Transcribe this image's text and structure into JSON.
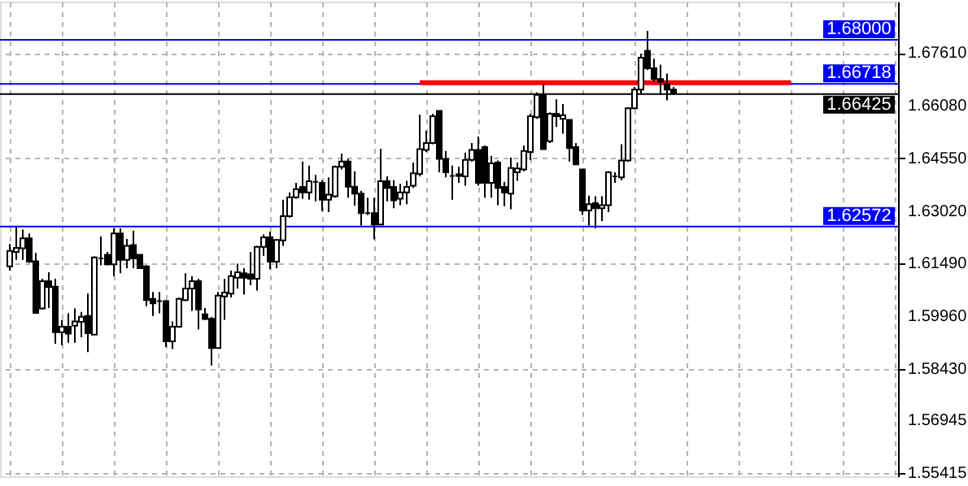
{
  "chart_data": {
    "type": "candlestick",
    "categories": [
      null,
      null,
      null,
      null,
      null,
      null,
      null,
      null,
      null,
      null,
      null,
      null,
      null,
      null,
      null,
      null,
      null,
      null,
      null,
      null,
      null,
      null,
      null,
      null,
      null,
      null,
      null,
      null,
      null,
      null,
      null,
      null,
      null,
      null,
      null,
      null,
      null,
      null,
      null,
      null,
      null,
      null,
      null,
      null,
      null,
      null,
      null,
      null,
      null,
      null,
      null,
      null,
      null,
      null,
      null,
      null,
      null,
      null,
      null,
      null,
      null,
      null,
      null,
      null,
      null,
      null,
      null,
      null,
      null,
      null,
      null,
      null,
      null,
      null,
      null,
      null,
      null,
      null,
      null,
      null,
      null,
      null,
      null,
      null,
      null,
      null,
      null,
      null,
      null,
      null,
      null,
      null,
      null,
      null,
      null,
      null,
      null,
      null,
      null,
      null,
      null,
      null,
      null,
      null,
      null,
      null,
      null,
      null,
      null,
      null,
      null,
      null,
      null,
      null,
      null,
      null,
      null,
      null,
      null,
      null,
      null,
      null,
      null,
      null,
      null,
      null,
      null,
      null,
      null,
      null,
      null,
      null,
      null,
      null,
      null,
      null,
      null,
      null
    ],
    "ohlc": [
      null,
      [
        1.6141,
        1.6206,
        1.6129,
        1.6186
      ],
      [
        1.6183,
        1.6257,
        1.616,
        1.6195
      ],
      [
        1.6194,
        1.6248,
        1.616,
        1.6223
      ],
      [
        1.6223,
        1.6237,
        1.6152,
        1.6155
      ],
      [
        1.6156,
        1.618,
        1.6006,
        1.6006
      ],
      [
        1.6019,
        1.6105,
        1.6016,
        1.6098
      ],
      [
        1.6098,
        1.6124,
        1.602,
        1.6081
      ],
      [
        1.6082,
        1.6105,
        1.5916,
        1.595
      ],
      [
        1.595,
        1.5985,
        1.5912,
        1.5966
      ],
      [
        1.5966,
        1.6005,
        1.5919,
        1.5946
      ],
      [
        1.5969,
        1.6019,
        1.5919,
        1.5981
      ],
      [
        1.598,
        1.6009,
        1.5935,
        1.5995
      ],
      [
        1.5997,
        1.6062,
        1.5892,
        1.5947
      ],
      [
        1.5943,
        1.617,
        1.5943,
        1.6167
      ],
      [
        1.6164,
        1.6228,
        1.6144,
        1.6164
      ],
      [
        1.6175,
        1.6183,
        1.6144,
        1.6147
      ],
      [
        1.6147,
        1.6252,
        1.6113,
        1.6237
      ],
      [
        1.6237,
        1.6252,
        1.6121,
        1.616
      ],
      [
        1.616,
        1.6221,
        1.6136,
        1.6201
      ],
      [
        1.6203,
        1.6245,
        1.6136,
        1.6164
      ],
      [
        1.6175,
        1.6175,
        1.6136,
        1.6136
      ],
      [
        1.6141,
        1.6144,
        1.6025,
        1.6043
      ],
      [
        1.6047,
        1.6067,
        1.5997,
        1.6034
      ],
      [
        1.604,
        1.6067,
        1.6005,
        1.604
      ],
      [
        1.604,
        1.6043,
        1.5907,
        1.5923
      ],
      [
        1.5923,
        1.5981,
        1.5901,
        1.5966
      ],
      [
        1.5966,
        1.6051,
        1.5963,
        1.6047
      ],
      [
        1.6043,
        1.6121,
        1.604,
        1.6077
      ],
      [
        1.6077,
        1.6113,
        1.6012,
        1.6098
      ],
      [
        1.6098,
        1.6105,
        1.5958,
        1.6016
      ],
      [
        1.6002,
        1.602,
        1.5985,
        1.5988
      ],
      [
        1.5989,
        1.5994,
        1.5853,
        1.5904
      ],
      [
        1.5904,
        1.6067,
        1.5904,
        1.6056
      ],
      [
        1.6054,
        1.6105,
        1.5986,
        1.6065
      ],
      [
        1.6062,
        1.6129,
        1.6051,
        1.6113
      ],
      [
        1.6108,
        1.6149,
        1.6077,
        1.6124
      ],
      [
        1.6121,
        1.6136,
        1.6059,
        1.6108
      ],
      [
        1.6118,
        1.6183,
        1.6087,
        1.6105
      ],
      [
        1.6105,
        1.6201,
        1.6071,
        1.6198
      ],
      [
        1.6198,
        1.6234,
        1.6172,
        1.6226
      ],
      [
        1.6226,
        1.6242,
        1.6133,
        1.6155
      ],
      [
        1.6155,
        1.6221,
        1.6136,
        1.6218
      ],
      [
        1.6217,
        1.6335,
        1.6201,
        1.6287
      ],
      [
        1.6287,
        1.6356,
        1.6283,
        1.6342
      ],
      [
        1.6342,
        1.6384,
        1.6338,
        1.6366
      ],
      [
        1.6372,
        1.6446,
        1.6338,
        1.6356
      ],
      [
        1.6356,
        1.6434,
        1.6335,
        1.6389
      ],
      [
        1.6387,
        1.6407,
        1.633,
        1.6387
      ],
      [
        1.6384,
        1.6392,
        1.6302,
        1.6335
      ],
      [
        1.6335,
        1.64,
        1.6299,
        1.635
      ],
      [
        1.6345,
        1.6434,
        1.6341,
        1.6431
      ],
      [
        1.6431,
        1.6469,
        1.6423,
        1.6446
      ],
      [
        1.6446,
        1.6454,
        1.6341,
        1.6373
      ],
      [
        1.6373,
        1.6418,
        1.6318,
        1.6353
      ],
      [
        1.6353,
        1.6361,
        1.626,
        1.6296
      ],
      [
        1.6296,
        1.6341,
        1.6291,
        1.6296
      ],
      [
        1.6296,
        1.6341,
        1.622,
        1.6263
      ],
      [
        1.6263,
        1.6483,
        1.6263,
        1.6389
      ],
      [
        1.6389,
        1.6403,
        1.633,
        1.6369
      ],
      [
        1.6372,
        1.6392,
        1.631,
        1.6333
      ],
      [
        1.6338,
        1.6381,
        1.6319,
        1.6356
      ],
      [
        1.6356,
        1.639,
        1.6322,
        1.6372
      ],
      [
        1.6376,
        1.6443,
        1.6369,
        1.6412
      ],
      [
        1.641,
        1.6582,
        1.6403,
        1.6482
      ],
      [
        1.648,
        1.6536,
        1.6474,
        1.65
      ],
      [
        1.65,
        1.6585,
        1.6496,
        1.6578
      ],
      [
        1.6593,
        1.6593,
        1.6415,
        1.6454
      ],
      [
        1.6454,
        1.6477,
        1.64,
        1.6415
      ],
      [
        1.6404,
        1.6434,
        1.6335,
        1.6404
      ],
      [
        1.6404,
        1.6431,
        1.6384,
        1.6409
      ],
      [
        1.6403,
        1.6472,
        1.6376,
        1.6451
      ],
      [
        1.6451,
        1.65,
        1.6446,
        1.648
      ],
      [
        1.648,
        1.6519,
        1.6376,
        1.6384
      ],
      [
        1.6488,
        1.6493,
        1.6341,
        1.6384
      ],
      [
        1.6384,
        1.6462,
        1.6341,
        1.6441
      ],
      [
        1.6443,
        1.6449,
        1.6319,
        1.6369
      ],
      [
        1.6372,
        1.6387,
        1.6316,
        1.6356
      ],
      [
        1.6353,
        1.6458,
        1.6307,
        1.6427
      ],
      [
        1.6415,
        1.6443,
        1.639,
        1.6426
      ],
      [
        1.6423,
        1.6493,
        1.6418,
        1.6477
      ],
      [
        1.6474,
        1.6585,
        1.6451,
        1.6578
      ],
      [
        1.6575,
        1.6647,
        1.657,
        1.664
      ],
      [
        1.664,
        1.6671,
        1.6482,
        1.6482
      ],
      [
        1.6505,
        1.6589,
        1.65,
        1.6585
      ],
      [
        1.6585,
        1.6627,
        1.6547,
        1.6578
      ],
      [
        1.657,
        1.6613,
        1.6527,
        1.6581
      ],
      [
        1.6567,
        1.6567,
        1.6446,
        1.6485
      ],
      [
        1.6488,
        1.65,
        1.6438,
        1.6438
      ],
      [
        1.6423,
        1.6423,
        1.6291,
        1.6304
      ],
      [
        1.6304,
        1.6347,
        1.626,
        1.6322
      ],
      [
        1.6325,
        1.6345,
        1.6252,
        1.631
      ],
      [
        1.631,
        1.6345,
        1.6273,
        1.6319
      ],
      [
        1.6319,
        1.6418,
        1.6299,
        1.6415
      ],
      [
        1.6403,
        1.6415,
        1.6384,
        1.6403
      ],
      [
        1.64,
        1.6496,
        1.6392,
        1.6449
      ],
      [
        1.6449,
        1.6604,
        1.6446,
        1.6601
      ],
      [
        1.6601,
        1.6663,
        1.6598,
        1.6655
      ],
      [
        1.6655,
        1.6759,
        1.6644,
        1.6748
      ],
      [
        1.6768,
        1.6826,
        1.6712,
        1.6717
      ],
      [
        1.6717,
        1.6745,
        1.6678,
        1.6686
      ],
      [
        1.6686,
        1.6728,
        1.664,
        1.6678
      ],
      [
        1.6671,
        1.6702,
        1.6624,
        1.6655
      ],
      [
        1.6655,
        1.6663,
        1.664,
        1.6644
      ],
      null,
      null,
      null,
      null,
      null,
      null,
      null,
      null,
      null,
      null,
      null,
      null,
      null,
      null,
      null,
      null,
      null,
      null,
      null,
      null,
      null,
      null,
      null,
      null,
      null,
      null,
      null,
      null,
      null,
      null,
      null,
      null,
      null,
      null
    ],
    "series": [
      {
        "type": "line",
        "color": "#ff0000",
        "values": [
          null,
          null,
          null,
          null,
          null,
          null,
          null,
          null,
          null,
          null,
          null,
          null,
          null,
          null,
          null,
          null,
          null,
          null,
          null,
          null,
          null,
          null,
          null,
          null,
          null,
          null,
          null,
          null,
          null,
          null,
          null,
          null,
          null,
          null,
          null,
          null,
          null,
          null,
          null,
          null,
          null,
          null,
          null,
          null,
          null,
          null,
          null,
          null,
          null,
          null,
          null,
          null,
          null,
          null,
          null,
          null,
          null,
          null,
          null,
          null,
          null,
          null,
          null,
          null,
          1.6675,
          1.6675,
          1.6675,
          1.6675,
          1.6675,
          1.6675,
          1.6675,
          1.6675,
          1.6675,
          1.6675,
          1.6675,
          1.6675,
          1.6675,
          1.6675,
          1.6675,
          1.6675,
          1.6675,
          1.6675,
          1.6675,
          1.6675,
          1.6675,
          1.6675,
          1.6675,
          1.6675,
          1.6675,
          1.6675,
          1.6675,
          1.6675,
          1.6675,
          1.6675,
          1.6675,
          1.6675,
          1.6675,
          1.6675,
          1.6675,
          1.6675,
          1.6675,
          1.6675,
          1.6675,
          1.6675,
          1.6675,
          1.6675,
          1.6675,
          1.6675,
          1.6675,
          1.6675,
          1.6675,
          1.6675,
          1.6675,
          1.6675,
          1.6675,
          1.6675,
          1.6675,
          1.6675,
          1.6675,
          1.6675,
          1.6675,
          1.6675,
          null,
          null,
          null,
          null,
          null,
          null,
          null,
          null,
          null,
          null,
          null,
          null,
          null,
          null,
          null,
          null
        ]
      }
    ],
    "ylim": [
      1.5531,
      1.6911
    ],
    "yticks": [
      1.55415,
      1.56945,
      {
        "value": 1.5843,
        "label": "1.58430"
      },
      {
        "value": 1.5996,
        "label": "1.59960"
      },
      {
        "value": 1.6149,
        "label": "1.61490"
      },
      {
        "value": 1.6302,
        "label": "1.63020"
      },
      {
        "value": 1.6455,
        "label": "1.64550"
      },
      {
        "value": 1.6608,
        "label": "1.66080"
      },
      {
        "value": 1.6761,
        "label": "1.67610"
      }
    ],
    "ref_lines": [
      {
        "axis": "y",
        "value": 1.68,
        "label": "1.68000",
        "color": "#0000ff"
      },
      {
        "axis": "y",
        "value": 1.66718,
        "label": "1.66718",
        "color": "#0000ff"
      },
      {
        "axis": "y",
        "value": 1.62572,
        "label": "1.62572",
        "color": "#0000ff"
      },
      {
        "axis": "y",
        "value": 1.66425,
        "label": "1.66425",
        "color": "#000000"
      }
    ],
    "grid": true,
    "tick_labels": "y"
  }
}
